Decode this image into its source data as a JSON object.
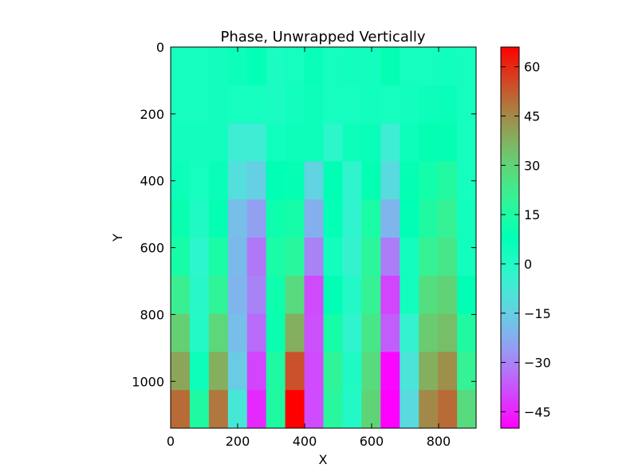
{
  "chart_data": {
    "type": "heatmap",
    "title": "Phase, Unwrapped Vertically",
    "xlabel": "X",
    "ylabel": "Y",
    "xlim": [
      0,
      912
    ],
    "ylim": [
      1140,
      0
    ],
    "y_inverted": true,
    "x_ticks": [
      0,
      200,
      400,
      600,
      800
    ],
    "y_ticks": [
      0,
      200,
      400,
      600,
      800,
      1000
    ],
    "x_edges": [
      0,
      57,
      114,
      171,
      228,
      285,
      342,
      399,
      456,
      513,
      570,
      627,
      684,
      741,
      798,
      855,
      912
    ],
    "y_edges": [
      0,
      114,
      228,
      342,
      456,
      570,
      684,
      798,
      912,
      1026,
      1140
    ],
    "values": [
      [
        3,
        3,
        4,
        5,
        7,
        2,
        3,
        6,
        3,
        4,
        4,
        9,
        3,
        3,
        4,
        3
      ],
      [
        3,
        3,
        4,
        3,
        3,
        2,
        4,
        5,
        3,
        3,
        4,
        3,
        4,
        5,
        6,
        3
      ],
      [
        4,
        4,
        4,
        -6,
        -6,
        4,
        5,
        5,
        -2,
        5,
        6,
        -6,
        5,
        9,
        9,
        3
      ],
      [
        5,
        3,
        6,
        -11,
        -15,
        8,
        9,
        -14,
        8,
        -3,
        9,
        -12,
        9,
        12,
        16,
        3
      ],
      [
        10,
        1,
        9,
        -19,
        -25,
        11,
        13,
        -22,
        7,
        -3,
        14,
        -21,
        8,
        15,
        20,
        4
      ],
      [
        13,
        -2,
        14,
        -20,
        -32,
        14,
        17,
        -30,
        4,
        -4,
        18,
        -31,
        4,
        20,
        24,
        4
      ],
      [
        21,
        -1,
        19,
        -21,
        -30,
        11,
        28,
        -39,
        8,
        0,
        20,
        -40,
        4,
        27,
        30,
        8
      ],
      [
        31,
        0,
        29,
        -19,
        -34,
        10,
        38,
        -38,
        13,
        -3,
        24,
        -36,
        -4,
        32,
        35,
        15
      ],
      [
        40,
        5,
        38,
        -16,
        -40,
        15,
        54,
        -39,
        19,
        1,
        28,
        -49,
        -9,
        38,
        44,
        20
      ],
      [
        50,
        15,
        48,
        -8,
        -44,
        15,
        66,
        -39,
        17,
        0,
        30,
        -55,
        -12,
        45,
        50,
        28
      ]
    ],
    "colorbar": {
      "colormap": "rainbow",
      "vmin": -50,
      "vmax": 66,
      "ticks": [
        -45,
        -30,
        -15,
        0,
        15,
        30,
        45,
        60
      ],
      "tick_labels": [
        "−45",
        "−30",
        "−15",
        "0",
        "15",
        "30",
        "45",
        "60"
      ]
    },
    "grid": false
  }
}
